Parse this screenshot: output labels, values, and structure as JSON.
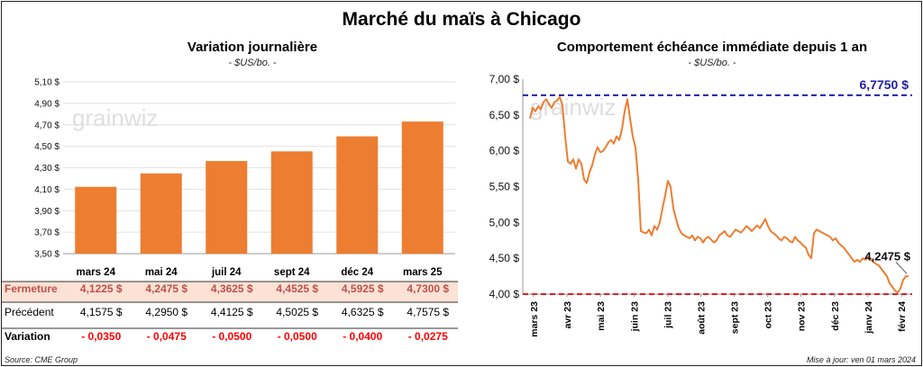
{
  "title": "Marché du maïs à Chicago",
  "left": {
    "title": "Variation  journalière",
    "unit": "- $US/bo. -",
    "watermark": "grainwiz",
    "chart_data": {
      "type": "bar",
      "title": "Variation  journalière",
      "ylim": [
        3.5,
        5.1
      ],
      "yticks": [
        "3,50 $",
        "3,70 $",
        "3,90 $",
        "4,10 $",
        "4,30 $",
        "4,50 $",
        "4,70 $",
        "4,90 $",
        "5,10 $"
      ],
      "ytick_values": [
        3.5,
        3.7,
        3.9,
        4.1,
        4.3,
        4.5,
        4.7,
        4.9,
        5.1
      ],
      "categories": [
        "mars 24",
        "mai 24",
        "juil 24",
        "sept 24",
        "déc 24",
        "mars 25"
      ],
      "values": [
        4.1225,
        4.2475,
        4.3625,
        4.4525,
        4.5925,
        4.73
      ],
      "bar_color": "#ED7D31",
      "grid": true
    },
    "table": {
      "rows": [
        {
          "label": "Fermeture",
          "values": [
            "4,1225  $",
            "4,2475  $",
            "4,3625  $",
            "4,4525  $",
            "4,5925  $",
            "4,7300  $"
          ]
        },
        {
          "label": "Précédent",
          "values": [
            "4,1575  $",
            "4,2950  $",
            "4,4125  $",
            "4,5025  $",
            "4,6325  $",
            "4,7575  $"
          ]
        },
        {
          "label": "Variation",
          "values": [
            "- 0,0350",
            "- 0,0475",
            "- 0,0500",
            "- 0,0500",
            "- 0,0400",
            "- 0,0275"
          ]
        }
      ],
      "highlight_color": "#FBE2D5",
      "label_color": "#C0504D",
      "negative_color": "#FF0000"
    }
  },
  "right": {
    "title": "Comportement  échéance immédiate  depuis 1 an",
    "unit": "- $US/bo. -",
    "watermark": "grainwiz",
    "chart_data": {
      "type": "line",
      "title": "Comportement  échéance immédiate  depuis 1 an",
      "ylim": [
        4.0,
        7.0
      ],
      "yticks": [
        "4,00 $",
        "4,50 $",
        "5,00 $",
        "5,50 $",
        "6,00 $",
        "6,50 $",
        "7,00 $"
      ],
      "ytick_values": [
        4.0,
        4.5,
        5.0,
        5.5,
        6.0,
        6.5,
        7.0
      ],
      "xticks": [
        "mars 23",
        "avr 23",
        "mai 23",
        "juin 23",
        "juil 23",
        "août 23",
        "sept 23",
        "oct 23",
        "nov 23",
        "déc 23",
        "janv 24",
        "févr 24"
      ],
      "line_color": "#ED7D31",
      "high": {
        "value": 6.775,
        "label": "6,7750 $",
        "color": "#1F1FA8"
      },
      "low": {
        "value": 4.0,
        "color": "#E02020"
      },
      "last_label": "4,2475 $",
      "series": [
        {
          "values": [
            6.45,
            6.6,
            6.55,
            6.62,
            6.58,
            6.68,
            6.72,
            6.65,
            6.6,
            6.68,
            6.7,
            6.75,
            6.64,
            6.2,
            5.85,
            5.82,
            5.88,
            5.75,
            5.88,
            5.82,
            5.6,
            5.55,
            5.7,
            5.8,
            5.95,
            6.05,
            5.98,
            6.0,
            6.05,
            6.12,
            6.15,
            6.1,
            6.2,
            6.15,
            6.3,
            6.55,
            6.72,
            6.45,
            6.2,
            6.05,
            5.6,
            4.88,
            4.86,
            4.85,
            4.9,
            4.82,
            4.95,
            4.9,
            5.0,
            5.2,
            5.38,
            5.58,
            5.5,
            5.2,
            5.05,
            4.92,
            4.85,
            4.82,
            4.8,
            4.78,
            4.82,
            4.75,
            4.8,
            4.78,
            4.72,
            4.78,
            4.8,
            4.76,
            4.72,
            4.75,
            4.82,
            4.85,
            4.88,
            4.82,
            4.8,
            4.85,
            4.9,
            4.88,
            4.86,
            4.9,
            4.95,
            4.92,
            4.88,
            4.92,
            4.96,
            4.92,
            4.98,
            5.05,
            4.95,
            4.88,
            4.85,
            4.82,
            4.78,
            4.75,
            4.8,
            4.78,
            4.74,
            4.72,
            4.8,
            4.75,
            4.72,
            4.68,
            4.65,
            4.55,
            4.5,
            4.85,
            4.9,
            4.88,
            4.86,
            4.84,
            4.82,
            4.8,
            4.75,
            4.78,
            4.72,
            4.68,
            4.65,
            4.6,
            4.55,
            4.5,
            4.45,
            4.48,
            4.45,
            4.5,
            4.48,
            4.52,
            4.48,
            4.45,
            4.42,
            4.4,
            4.35,
            4.3,
            4.25,
            4.15,
            4.1,
            4.05,
            4.02,
            4.08,
            4.2,
            4.25,
            4.2475
          ]
        }
      ]
    }
  },
  "footer": {
    "source": "Source: CME Group",
    "updated": "Mise à jour: ven 01 mars 2024"
  }
}
